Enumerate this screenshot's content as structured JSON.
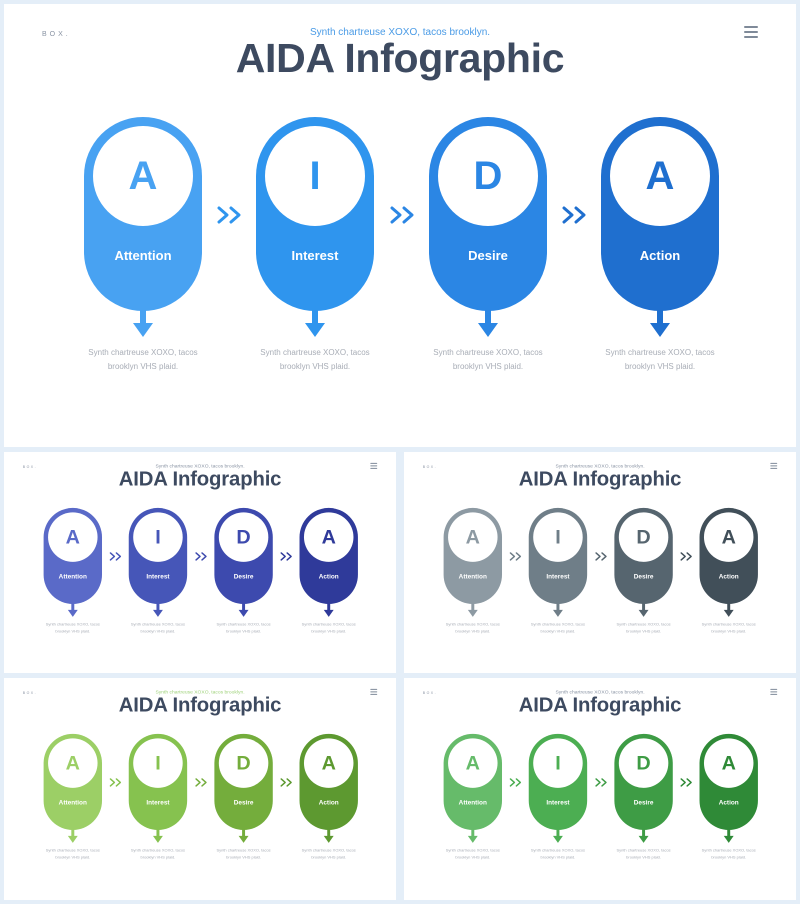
{
  "brand": "BOX.",
  "subtitle": "Synth chartreuse XOXO, tacos brooklyn.",
  "title": "AIDA Infographic",
  "description": "Synth chartreuse XOXO, tacos brooklyn VHS plaid.",
  "steps": [
    {
      "letter": "A",
      "word": "Attention"
    },
    {
      "letter": "I",
      "word": "Interest"
    },
    {
      "letter": "D",
      "word": "Desire"
    },
    {
      "letter": "A",
      "word": "Action"
    }
  ],
  "icons": {
    "menu": "hamburger-menu-icon",
    "next": "double-chevron-right-icon",
    "down": "down-arrow-icon"
  },
  "themes": [
    {
      "id": "blue",
      "title_color": "#3d4a60",
      "subtitle_color": "#4a9be6",
      "colors": [
        "#48a2f2",
        "#2f95ee",
        "#2b86e4",
        "#1f6fcf"
      ]
    },
    {
      "id": "indigo",
      "title_color": "#3d4a60",
      "subtitle_color": "#8a94a4",
      "colors": [
        "#5a6ac8",
        "#4656b8",
        "#3d4aae",
        "#2f3a9a"
      ]
    },
    {
      "id": "slate",
      "title_color": "#3d4a60",
      "subtitle_color": "#8a94a4",
      "colors": [
        "#8d9aa3",
        "#6f7e88",
        "#56656f",
        "#414f59"
      ]
    },
    {
      "id": "lime",
      "title_color": "#3d4a60",
      "subtitle_color": "#9fd27a",
      "colors": [
        "#9ccf66",
        "#86c24f",
        "#74ad3c",
        "#5d9930"
      ]
    },
    {
      "id": "green",
      "title_color": "#3d4a60",
      "subtitle_color": "#8a94a4",
      "colors": [
        "#66bb6a",
        "#4cae52",
        "#3e9c45",
        "#2f8a37"
      ]
    }
  ]
}
